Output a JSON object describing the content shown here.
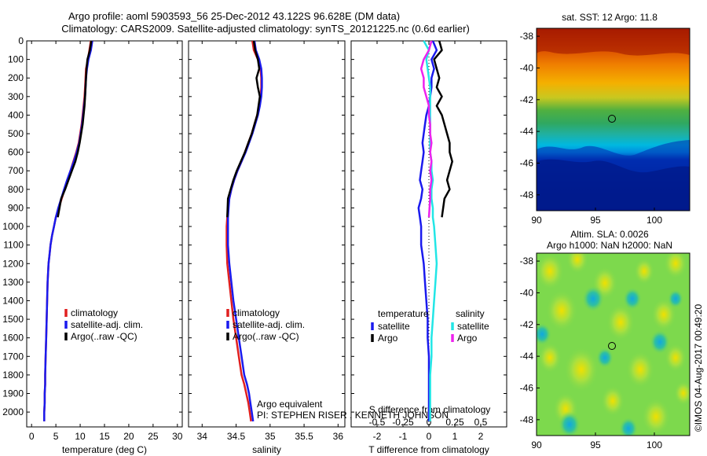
{
  "header": {
    "title_line1": "Argo profile: aoml 5903593_56 25-Dec-2012 43.122S 96.628E (DM data)",
    "title_line2": "Climatology: CARS2009. Satellite-adjusted climatology: synTS_20121225.nc (0.6d earlier)"
  },
  "side_text": "©IMOS 04-Aug-2017 00:49:20",
  "colors": {
    "climatology": "#e02020",
    "satellite": "#1a1aee",
    "argo": "#000000",
    "sal_satellite": "#22e6e6",
    "sal_argo": "#ee22ee",
    "axis": "#000000"
  },
  "chart_data": [
    {
      "type": "line",
      "id": "temperature",
      "xlabel": "temperature (deg C)",
      "xlim": [
        -1,
        31
      ],
      "ylim": [
        2080,
        0
      ],
      "xticks": [
        0,
        5,
        10,
        15,
        20,
        25,
        30
      ],
      "yticks": [
        0,
        100,
        200,
        300,
        400,
        500,
        600,
        700,
        800,
        900,
        1000,
        1100,
        1200,
        1300,
        1400,
        1500,
        1600,
        1700,
        1800,
        1900,
        2000
      ],
      "legend": [
        "climatology",
        "satellite-adj. clim.",
        "Argo(..raw -QC)"
      ],
      "series": [
        {
          "role": "climatology",
          "color": "#e02020",
          "x": [
            12.2,
            11.9,
            11.6,
            11.2,
            11.1,
            11.0,
            10.9,
            10.7,
            10.5,
            10.3,
            10.0,
            9.7,
            9.2,
            8.6,
            8.0,
            7.4,
            6.8,
            6.2,
            5.6,
            5.0,
            4.6,
            4.2,
            3.9,
            3.7,
            3.5,
            3.3,
            3.2,
            3.1,
            3.0,
            2.9,
            2.8,
            2.8,
            2.7,
            2.7,
            2.6,
            2.6
          ],
          "y": [
            0,
            50,
            100,
            150,
            200,
            250,
            300,
            350,
            400,
            450,
            500,
            550,
            600,
            650,
            700,
            750,
            800,
            850,
            900,
            950,
            1000,
            1050,
            1100,
            1150,
            1200,
            1300,
            1400,
            1500,
            1600,
            1700,
            1800,
            1850,
            1900,
            1950,
            2000,
            2050
          ]
        },
        {
          "role": "satellite",
          "color": "#1a1aee",
          "x": [
            12.5,
            12.2,
            11.7,
            11.4,
            11.2,
            11.1,
            11.0,
            10.8,
            10.6,
            10.4,
            10.1,
            9.8,
            9.3,
            8.7,
            8.0,
            7.3,
            6.7,
            6.1,
            5.5,
            5.0,
            4.6,
            4.2,
            3.9,
            3.7,
            3.5,
            3.3,
            3.2,
            3.1,
            3.0,
            2.9,
            2.8,
            2.8,
            2.7,
            2.7,
            2.6,
            2.6
          ],
          "y": [
            0,
            50,
            100,
            150,
            200,
            250,
            300,
            350,
            400,
            450,
            500,
            550,
            600,
            650,
            700,
            750,
            800,
            850,
            900,
            950,
            1000,
            1050,
            1100,
            1150,
            1200,
            1300,
            1400,
            1500,
            1600,
            1700,
            1800,
            1850,
            1900,
            1950,
            2000,
            2050
          ]
        },
        {
          "role": "argo",
          "color": "#000000",
          "x": [
            12.3,
            12.0,
            11.5,
            11.3,
            11.2,
            11.1,
            11.0,
            10.9,
            10.7,
            10.5,
            10.2,
            9.9,
            9.5,
            9.0,
            8.3,
            7.6,
            6.9,
            6.1,
            5.4
          ],
          "y": [
            0,
            50,
            100,
            150,
            200,
            250,
            300,
            350,
            400,
            450,
            500,
            550,
            600,
            650,
            700,
            750,
            800,
            850,
            950
          ]
        }
      ]
    },
    {
      "type": "line",
      "id": "salinity",
      "xlabel": "salinity",
      "xlim": [
        33.8,
        36.1
      ],
      "ylim": [
        2080,
        0
      ],
      "xticks": [
        34,
        34.5,
        35,
        35.5,
        36
      ],
      "legend": [
        "climatology",
        "satellite-adj. clim.",
        "Argo(..raw -QC)"
      ],
      "annotation": [
        "Argo equivalent",
        "PI: STEPHEN RISER , KENNETH JOHNSON"
      ],
      "series": [
        {
          "role": "climatology",
          "color": "#e02020",
          "x": [
            34.74,
            34.76,
            34.82,
            34.86,
            34.87,
            34.87,
            34.86,
            34.84,
            34.81,
            34.77,
            34.73,
            34.68,
            34.63,
            34.58,
            34.52,
            34.47,
            34.43,
            34.4,
            34.38,
            34.37,
            34.36,
            34.36,
            34.37,
            34.4,
            34.43,
            34.46,
            34.5,
            34.54,
            34.58,
            34.62,
            34.65,
            34.68,
            34.7,
            34.72
          ],
          "y": [
            0,
            50,
            100,
            150,
            200,
            250,
            300,
            350,
            400,
            450,
            500,
            550,
            600,
            650,
            700,
            750,
            800,
            850,
            900,
            950,
            1000,
            1100,
            1200,
            1300,
            1400,
            1500,
            1600,
            1700,
            1800,
            1850,
            1900,
            1950,
            2000,
            2050
          ]
        },
        {
          "role": "satellite",
          "color": "#1a1aee",
          "x": [
            34.77,
            34.79,
            34.84,
            34.87,
            34.88,
            34.88,
            34.87,
            34.85,
            34.82,
            34.78,
            34.74,
            34.69,
            34.64,
            34.58,
            34.52,
            34.47,
            34.43,
            34.4,
            34.39,
            34.38,
            34.38,
            34.38,
            34.4,
            34.43,
            34.46,
            34.5,
            34.54,
            34.58,
            34.62,
            34.66,
            34.69,
            34.71,
            34.73,
            34.75
          ],
          "y": [
            0,
            50,
            100,
            150,
            200,
            250,
            300,
            350,
            400,
            450,
            500,
            550,
            600,
            650,
            700,
            750,
            800,
            850,
            900,
            950,
            1000,
            1100,
            1200,
            1300,
            1400,
            1500,
            1600,
            1700,
            1800,
            1850,
            1900,
            1950,
            2000,
            2050
          ]
        },
        {
          "role": "argo",
          "color": "#000000",
          "x": [
            34.76,
            34.78,
            34.82,
            34.84,
            34.8,
            34.82,
            34.85,
            34.83,
            34.81,
            34.77,
            34.73,
            34.68,
            34.63,
            34.57,
            34.51,
            34.46,
            34.42,
            34.38,
            34.37
          ],
          "y": [
            0,
            50,
            100,
            150,
            200,
            250,
            300,
            350,
            400,
            450,
            500,
            550,
            600,
            650,
            700,
            750,
            800,
            850,
            950
          ]
        }
      ]
    },
    {
      "type": "line",
      "id": "difference",
      "xlabel": "T difference from climatology",
      "xlabel_top": "S difference from climatology",
      "xlim": [
        -3,
        3
      ],
      "ylim": [
        2080,
        0
      ],
      "xticks": [
        -2,
        -1,
        0,
        1,
        2
      ],
      "xticks_sal": [
        -0.5,
        -0.25,
        0,
        0.25,
        0.5
      ],
      "legend_temperature": {
        "title": "temperature",
        "entries": [
          "satellite",
          "Argo"
        ]
      },
      "legend_salinity": {
        "title": "salinity",
        "entries": [
          "satellite",
          "Argo"
        ]
      },
      "series": [
        {
          "role": "T satellite",
          "color": "#1a1aee",
          "x": [
            0.15,
            0.3,
            0.1,
            0.2,
            0.1,
            0.1,
            0.05,
            0.0,
            -0.1,
            -0.15,
            -0.2,
            -0.25,
            -0.2,
            -0.25,
            -0.3,
            -0.35,
            -0.25,
            -0.3,
            -0.4,
            -0.35,
            -0.3,
            -0.3,
            -0.2,
            -0.15,
            -0.1,
            -0.05,
            -0.05,
            0.0,
            0.0,
            0.0,
            0.0
          ],
          "y": [
            0,
            50,
            100,
            150,
            200,
            250,
            300,
            350,
            400,
            450,
            500,
            550,
            600,
            650,
            700,
            750,
            800,
            850,
            900,
            950,
            1000,
            1100,
            1200,
            1300,
            1400,
            1500,
            1600,
            1700,
            1800,
            1900,
            2050
          ]
        },
        {
          "role": "T Argo",
          "color": "#000000",
          "x": [
            0.4,
            0.5,
            0.2,
            0.3,
            0.4,
            0.3,
            0.5,
            0.3,
            0.5,
            0.6,
            0.7,
            0.8,
            0.8,
            0.9,
            0.8,
            0.7,
            0.8,
            0.6,
            0.5
          ],
          "y": [
            0,
            50,
            100,
            150,
            200,
            250,
            300,
            350,
            400,
            450,
            500,
            550,
            600,
            650,
            700,
            750,
            800,
            850,
            950
          ]
        },
        {
          "role": "S satellite",
          "color": "#22e6e6",
          "x": [
            -0.2,
            0.0,
            -0.1,
            -0.05,
            0.0,
            0.05,
            0.05,
            0.05,
            0.05,
            0.05,
            0.05,
            0.05,
            0.05,
            0.1,
            0.1,
            0.15,
            0.1,
            0.1,
            0.15,
            0.15,
            0.2,
            0.25,
            0.3,
            0.25,
            0.2,
            0.15,
            0.1,
            0.1,
            0.05,
            0.05,
            0.05
          ],
          "y": [
            0,
            50,
            100,
            150,
            200,
            250,
            300,
            350,
            400,
            450,
            500,
            550,
            600,
            650,
            700,
            750,
            800,
            850,
            900,
            950,
            1000,
            1100,
            1200,
            1300,
            1400,
            1500,
            1600,
            1700,
            1800,
            1900,
            2050
          ]
        },
        {
          "role": "S Argo",
          "color": "#ee22ee",
          "x": [
            0.1,
            0.0,
            -0.2,
            -0.3,
            -0.2,
            -0.2,
            -0.1,
            0.0,
            0.0,
            0.05,
            0.05,
            0.1,
            0.05,
            0.1,
            0.05,
            0.1,
            0.05,
            0.05,
            0.0
          ],
          "y": [
            0,
            50,
            100,
            150,
            200,
            250,
            300,
            350,
            400,
            450,
            500,
            550,
            600,
            650,
            700,
            750,
            800,
            850,
            950
          ]
        }
      ]
    },
    {
      "type": "heatmap",
      "id": "sst_map",
      "title": "sat. SST: 12 Argo: 11.8",
      "xlim": [
        90,
        103
      ],
      "ylim": [
        -49,
        -37.5
      ],
      "xticks": [
        90,
        95,
        100
      ],
      "yticks": [
        -38,
        -40,
        -42,
        -44,
        -46,
        -48
      ],
      "marker": {
        "lon": 96.628,
        "lat": -43.122
      }
    },
    {
      "type": "heatmap",
      "id": "sla_map",
      "title_line1": "Altim. SLA: 0.0026",
      "title_line2": "Argo h1000: NaN h2000: NaN",
      "xlim": [
        90,
        103
      ],
      "ylim": [
        -49,
        -37.5
      ],
      "xticks": [
        90,
        95,
        100
      ],
      "yticks": [
        -38,
        -40,
        -42,
        -44,
        -46,
        -48
      ],
      "marker": {
        "lon": 96.628,
        "lat": -43.122
      }
    }
  ]
}
